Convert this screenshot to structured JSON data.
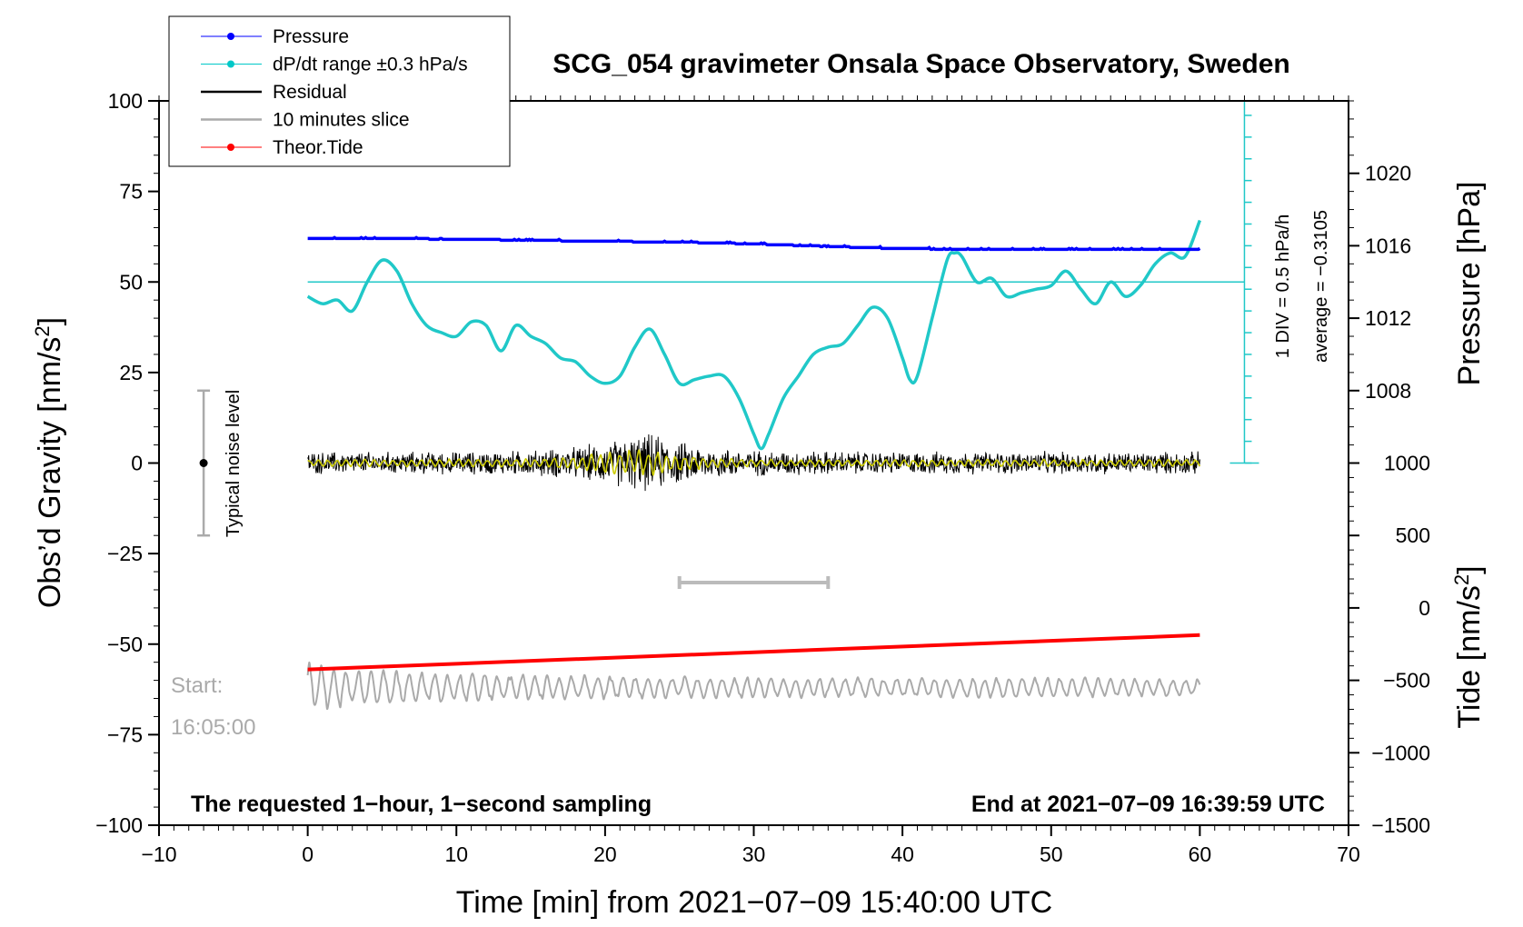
{
  "chart_data": {
    "type": "line",
    "title": "SCG_054 gravimeter Onsala Space Observatory, Sweden",
    "xlabel": "Time [min] from 2021−07−09 15:40:00 UTC",
    "ylabel_left": "Obs’d Gravity [nm/s²]",
    "ylabel_left_main": "Obs’d Gravity [nm/s",
    "ylabel_left_sup": "2",
    "ylabel_left_close": "]",
    "ylabel_right_top": "Pressure [hPa]",
    "ylabel_right_bottom_main": "Tide [nm/s",
    "ylabel_right_bottom_sup": "2",
    "ylabel_right_bottom_close": "]",
    "xlim": [
      -10,
      70
    ],
    "ylim_left": [
      -100,
      100
    ],
    "pressure_axis_range": [
      1004,
      1024
    ],
    "tide_axis_range": [
      -1500,
      1000
    ],
    "x_ticks": [
      {
        "value": -10,
        "label": "−10"
      },
      {
        "value": 0,
        "label": "0"
      },
      {
        "value": 10,
        "label": "10"
      },
      {
        "value": 20,
        "label": "20"
      },
      {
        "value": 30,
        "label": "30"
      },
      {
        "value": 40,
        "label": "40"
      },
      {
        "value": 50,
        "label": "50"
      },
      {
        "value": 60,
        "label": "60"
      },
      {
        "value": 70,
        "label": "70"
      }
    ],
    "y_ticks_left": [
      {
        "value": 100,
        "label": "100"
      },
      {
        "value": 75,
        "label": "75"
      },
      {
        "value": 50,
        "label": "50"
      },
      {
        "value": 25,
        "label": "25"
      },
      {
        "value": 0,
        "label": "0"
      },
      {
        "value": -25,
        "label": "−25"
      },
      {
        "value": -50,
        "label": "−50"
      },
      {
        "value": -75,
        "label": "−75"
      },
      {
        "value": -100,
        "label": "−100"
      }
    ],
    "y_ticks_pressure": [
      {
        "value": 1020,
        "label": "1020"
      },
      {
        "value": 1016,
        "label": "1016"
      },
      {
        "value": 1012,
        "label": "1012"
      },
      {
        "value": 1008,
        "label": "1008"
      }
    ],
    "y_ticks_tide": [
      {
        "value": 1000,
        "label": "1000"
      },
      {
        "value": 500,
        "label": "500"
      },
      {
        "value": 0,
        "label": "0"
      },
      {
        "value": -500,
        "label": "−500"
      },
      {
        "value": -1000,
        "label": "−1000"
      },
      {
        "value": -1500,
        "label": "−1500"
      }
    ],
    "legend": {
      "placement": "top-left",
      "entries": [
        {
          "label": "Pressure",
          "color": "#0000ff",
          "marker": true
        },
        {
          "label": "dP/dt range ±0.3 hPa/s",
          "color": "#00c8c8",
          "marker": true
        },
        {
          "label": "Residual",
          "color": "#000000",
          "marker": false
        },
        {
          "label": "10 minutes slice",
          "color": "#aaaaaa",
          "marker": false
        },
        {
          "label": "Theor.Tide",
          "color": "#ff0000",
          "marker": true
        }
      ]
    },
    "series": [
      {
        "name": "Pressure",
        "color": "#0000ff",
        "x": [
          0,
          5,
          10,
          15,
          20,
          25,
          30,
          35,
          40,
          45,
          50,
          55,
          60
        ],
        "y": [
          62,
          62,
          61.8,
          61.5,
          61.2,
          61,
          60.5,
          59.8,
          59.2,
          59,
          59,
          59,
          59
        ]
      },
      {
        "name": "dP/dt range ±0.3 hPa/s",
        "color": "#20c8c8",
        "x": [
          0,
          1,
          2,
          3,
          4,
          5,
          6,
          7,
          8,
          9,
          10,
          11,
          12,
          13,
          14,
          15,
          16,
          17,
          18,
          19,
          20,
          21,
          22,
          23,
          24,
          25,
          26,
          27,
          28,
          29,
          30,
          30.5,
          31,
          32,
          33,
          34,
          35,
          36,
          37,
          38,
          39,
          40,
          40.5,
          41,
          42,
          43,
          43.5,
          44,
          45,
          46,
          47,
          48,
          49,
          50,
          51,
          52,
          53,
          54,
          55,
          56,
          57,
          58,
          59,
          60
        ],
        "y": [
          46,
          44,
          45,
          42,
          50,
          56,
          53,
          44,
          38,
          36,
          35,
          39,
          38,
          31,
          38,
          35,
          33,
          29,
          28,
          24,
          22,
          24,
          32,
          37,
          30,
          22,
          23,
          24,
          24,
          18,
          8,
          4,
          8,
          18,
          24,
          30,
          32,
          33,
          38,
          43,
          40,
          29,
          23,
          24,
          40,
          56,
          58,
          57,
          50,
          51,
          46,
          47,
          48,
          49,
          53,
          48,
          44,
          50,
          46,
          49,
          55,
          58,
          57,
          67
        ]
      },
      {
        "name": "Residual",
        "color": "#000000",
        "x_range": [
          0,
          60
        ],
        "envelope": {
          "x": [
            0,
            10,
            15,
            18,
            20,
            22,
            23,
            24,
            25,
            27,
            30,
            40,
            50,
            60
          ],
          "amp": [
            3.5,
            3.5,
            4,
            5,
            6.5,
            8.5,
            9,
            8,
            6.5,
            5,
            4,
            3.5,
            3.5,
            3.5
          ]
        }
      },
      {
        "name": "Filtered",
        "color": "#cccc00",
        "x_range": [
          0,
          60
        ],
        "envelope": {
          "x": [
            0,
            15,
            18,
            20,
            22,
            23,
            25,
            27,
            30,
            60
          ],
          "amp": [
            1,
            1.2,
            2,
            3,
            4,
            3.5,
            2.5,
            1.5,
            1,
            1
          ]
        }
      },
      {
        "name": "10 minutes slice",
        "color": "#aaaaaa",
        "x_range": [
          0,
          60
        ],
        "center": -62,
        "envelope": {
          "x": [
            0,
            5,
            10,
            20,
            30,
            40,
            50,
            60
          ],
          "amp": [
            7,
            5,
            4,
            3.5,
            3,
            3,
            3,
            2.5
          ]
        }
      },
      {
        "name": "Theor.Tide",
        "color": "#ff0000",
        "x": [
          0,
          60
        ],
        "y": [
          -57,
          -47.5
        ]
      }
    ],
    "slice_marker": {
      "x": [
        25,
        35
      ],
      "y": -33
    },
    "noise_bar": {
      "x": -7,
      "center": 0,
      "half_range": 20,
      "label": "Typical noise level"
    },
    "pressure_reference_line": {
      "y": 50
    },
    "pressure_scale_bar": {
      "x": 63,
      "y_range": [
        0,
        100
      ],
      "tick_spacing": 6,
      "label": "1 DIV = 0.5 hPa/h",
      "average": "average = −0.3105"
    },
    "annotations": {
      "start_label": "Start:",
      "start_time": "16:05:00",
      "bottom_left": "The requested 1−hour, 1−second sampling",
      "bottom_right": "End at 2021−07−09 16:39:59 UTC"
    }
  }
}
